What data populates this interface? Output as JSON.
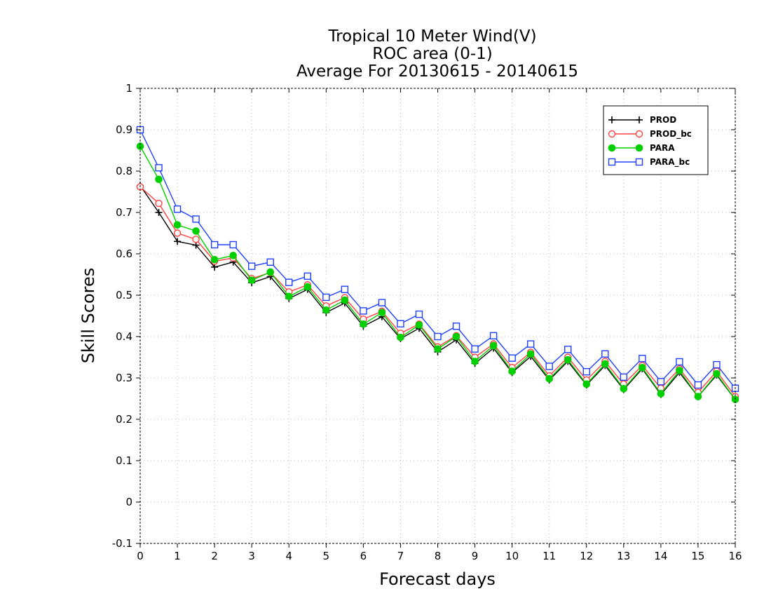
{
  "chart_data": {
    "type": "line",
    "title": [
      "Tropical 10 Meter Wind(V)",
      "ROC area (0-1)",
      "Average For 20130615 - 20140615"
    ],
    "xlabel": "Forecast days",
    "ylabel": "Skill Scores",
    "xlim": [
      0,
      16
    ],
    "ylim": [
      -0.1,
      1
    ],
    "xticks": [
      0,
      1,
      2,
      3,
      4,
      5,
      6,
      7,
      8,
      9,
      10,
      11,
      12,
      13,
      14,
      15,
      16
    ],
    "yticks": [
      -0.1,
      0,
      0.1,
      0.2,
      0.3,
      0.4,
      0.5,
      0.6,
      0.7,
      0.8,
      0.9,
      1
    ],
    "ytick_labels": [
      "-0.1",
      "0",
      "0.1",
      "0.2",
      "0.3",
      "0.4",
      "0.5",
      "0.6",
      "0.7",
      "0.8",
      "0.9",
      "1"
    ],
    "grid": true,
    "legend_position": "top-right",
    "x": [
      0,
      0.5,
      1,
      1.5,
      2,
      2.5,
      3,
      3.5,
      4,
      4.5,
      5,
      5.5,
      6,
      6.5,
      7,
      7.5,
      8,
      8.5,
      9,
      9.5,
      10,
      10.5,
      11,
      11.5,
      12,
      12.5,
      13,
      13.5,
      14,
      14.5,
      15,
      15.5,
      16
    ],
    "series": [
      {
        "name": "PROD",
        "color": "#000000",
        "marker": "plus",
        "values": [
          0.765,
          0.7,
          0.63,
          0.621,
          0.568,
          0.58,
          0.53,
          0.545,
          0.492,
          0.514,
          0.458,
          0.481,
          0.425,
          0.448,
          0.395,
          0.42,
          0.363,
          0.392,
          0.335,
          0.372,
          0.313,
          0.352,
          0.295,
          0.34,
          0.283,
          0.33,
          0.272,
          0.322,
          0.26,
          0.313,
          0.255,
          0.307,
          0.248
        ]
      },
      {
        "name": "PROD_bc",
        "color": "#ff4040",
        "marker": "circle-open",
        "values": [
          0.762,
          0.722,
          0.65,
          0.635,
          0.582,
          0.59,
          0.54,
          0.555,
          0.508,
          0.525,
          0.474,
          0.494,
          0.442,
          0.461,
          0.408,
          0.43,
          0.375,
          0.402,
          0.35,
          0.382,
          0.325,
          0.362,
          0.305,
          0.35,
          0.295,
          0.34,
          0.285,
          0.33,
          0.275,
          0.322,
          0.265,
          0.316,
          0.255
        ]
      },
      {
        "name": "PARA",
        "color": "#00d000",
        "marker": "circle-filled",
        "values": [
          0.86,
          0.78,
          0.67,
          0.655,
          0.586,
          0.596,
          0.536,
          0.556,
          0.497,
          0.52,
          0.464,
          0.488,
          0.43,
          0.458,
          0.398,
          0.428,
          0.37,
          0.4,
          0.34,
          0.378,
          0.316,
          0.358,
          0.298,
          0.344,
          0.285,
          0.334,
          0.274,
          0.325,
          0.262,
          0.318,
          0.255,
          0.31,
          0.248
        ]
      },
      {
        "name": "PARA_bc",
        "color": "#2040ff",
        "marker": "square-open",
        "values": [
          0.9,
          0.808,
          0.708,
          0.684,
          0.622,
          0.622,
          0.57,
          0.58,
          0.531,
          0.546,
          0.495,
          0.514,
          0.462,
          0.482,
          0.431,
          0.454,
          0.4,
          0.425,
          0.37,
          0.402,
          0.348,
          0.382,
          0.328,
          0.369,
          0.315,
          0.358,
          0.302,
          0.347,
          0.291,
          0.339,
          0.283,
          0.332,
          0.275
        ]
      }
    ]
  }
}
